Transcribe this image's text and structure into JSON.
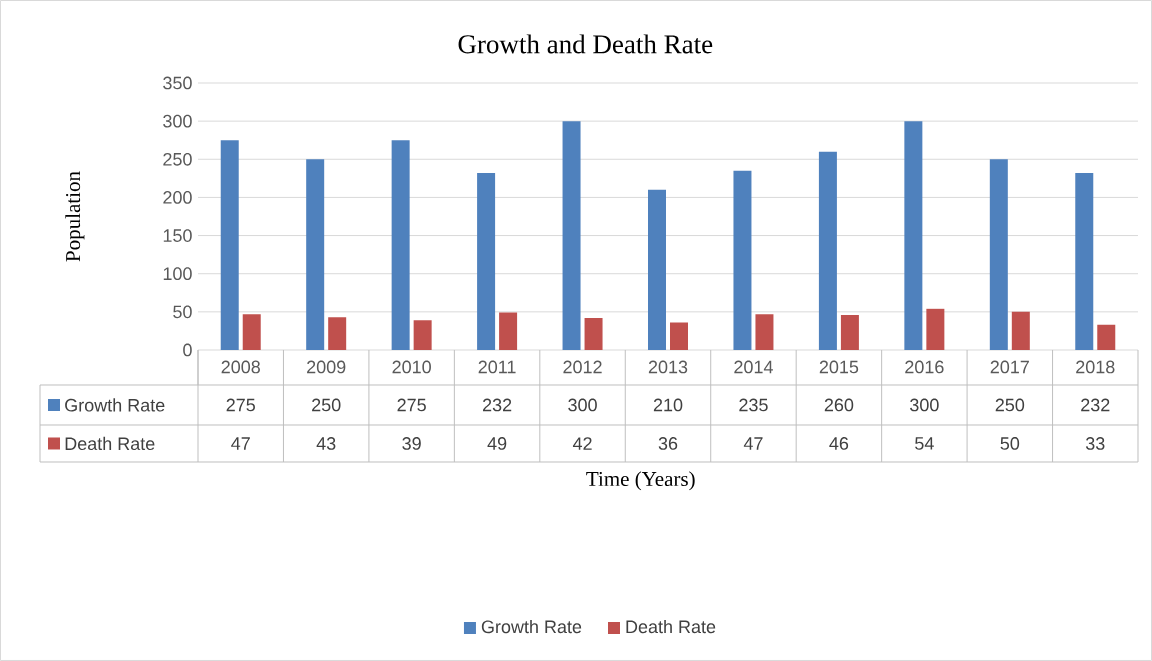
{
  "chart_data": {
    "type": "bar",
    "title": "Growth and Death Rate",
    "xlabel": "Time (Years)",
    "ylabel": "Population",
    "categories": [
      "2008",
      "2009",
      "2010",
      "2011",
      "2012",
      "2013",
      "2014",
      "2015",
      "2016",
      "2017",
      "2018"
    ],
    "series": [
      {
        "name": "Growth Rate",
        "color": "#4f81bd",
        "values": [
          275,
          250,
          275,
          232,
          300,
          210,
          235,
          260,
          300,
          250,
          232
        ]
      },
      {
        "name": "Death Rate",
        "color": "#c0504d",
        "values": [
          47,
          43,
          39,
          49,
          42,
          36,
          47,
          46,
          54,
          50,
          33
        ]
      }
    ],
    "ylim": [
      0,
      350
    ],
    "yticks": [
      0,
      50,
      100,
      150,
      200,
      250,
      300,
      350
    ],
    "grid": "y",
    "legend": "bottom",
    "data_labels": true
  }
}
